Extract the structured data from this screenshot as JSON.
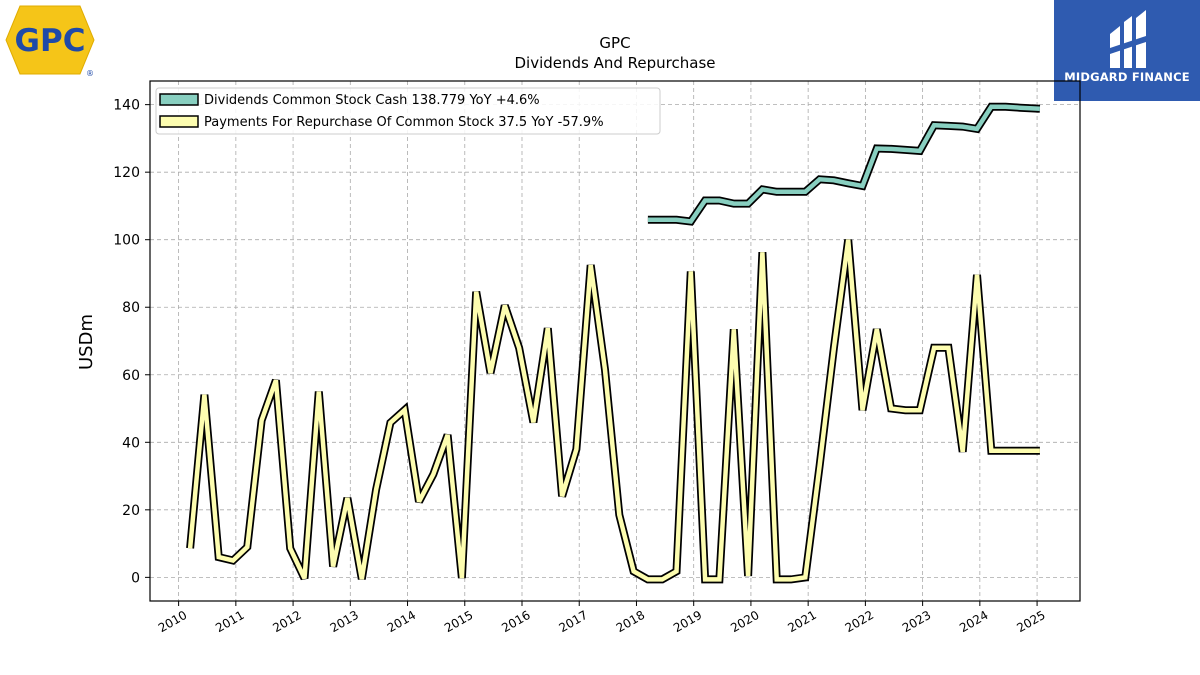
{
  "logos": {
    "left": {
      "text": "GPC",
      "reg": "®",
      "bg_color": "#f5c518",
      "text_color": "#1f4aa8"
    },
    "right": {
      "text": "MIDGARD FINANCE",
      "bg_color": "#2f5bb0"
    }
  },
  "chart_data": {
    "type": "line",
    "title": "GPC",
    "subtitle": "Dividends And Repurchase",
    "xlabel": "",
    "ylabel": "USDm",
    "xlim": [
      2009.5,
      2025.75
    ],
    "ylim": [
      -7,
      147
    ],
    "xticks": [
      2010,
      2011,
      2012,
      2013,
      2014,
      2015,
      2016,
      2017,
      2018,
      2019,
      2020,
      2021,
      2022,
      2023,
      2024,
      2025
    ],
    "yticks": [
      0,
      20,
      40,
      60,
      80,
      100,
      120,
      140
    ],
    "grid": true,
    "legend_position": "top-left",
    "series": [
      {
        "name": "Dividends Common Stock Cash",
        "legend_label": "Dividends Common Stock Cash  138.779 YoY +4.6%",
        "color": "#88cfc0",
        "points": [
          [
            2018.2,
            105.9
          ],
          [
            2018.45,
            105.9
          ],
          [
            2018.7,
            105.9
          ],
          [
            2018.95,
            105.4
          ],
          [
            2019.2,
            111.6
          ],
          [
            2019.45,
            111.6
          ],
          [
            2019.7,
            110.7
          ],
          [
            2019.95,
            110.7
          ],
          [
            2020.2,
            114.9
          ],
          [
            2020.45,
            114.2
          ],
          [
            2020.7,
            114.2
          ],
          [
            2020.95,
            114.2
          ],
          [
            2021.2,
            117.9
          ],
          [
            2021.45,
            117.6
          ],
          [
            2021.7,
            116.7
          ],
          [
            2021.95,
            115.9
          ],
          [
            2022.2,
            127.0
          ],
          [
            2022.45,
            126.9
          ],
          [
            2022.7,
            126.6
          ],
          [
            2022.95,
            126.3
          ],
          [
            2023.2,
            133.9
          ],
          [
            2023.45,
            133.7
          ],
          [
            2023.7,
            133.5
          ],
          [
            2023.95,
            132.8
          ],
          [
            2024.2,
            139.4
          ],
          [
            2024.45,
            139.4
          ],
          [
            2024.7,
            139.1
          ],
          [
            2025.05,
            138.8
          ]
        ]
      },
      {
        "name": "Payments For Repurchase Of Common Stock",
        "legend_label": "Payments For Repurchase Of Common Stock  37.5 YoY -57.9%",
        "color": "#fdfdb0",
        "points": [
          [
            2010.2,
            8.6
          ],
          [
            2010.45,
            54.1
          ],
          [
            2010.7,
            6.0
          ],
          [
            2010.95,
            5.0
          ],
          [
            2011.2,
            9.0
          ],
          [
            2011.45,
            46.5
          ],
          [
            2011.7,
            58.4
          ],
          [
            2011.95,
            8.6
          ],
          [
            2012.2,
            -0.3
          ],
          [
            2012.45,
            55.0
          ],
          [
            2012.7,
            3.2
          ],
          [
            2012.95,
            23.5
          ],
          [
            2013.2,
            -0.5
          ],
          [
            2013.45,
            26.0
          ],
          [
            2013.7,
            45.8
          ],
          [
            2013.95,
            49.6
          ],
          [
            2014.2,
            22.4
          ],
          [
            2014.45,
            30.5
          ],
          [
            2014.7,
            42.2
          ],
          [
            2014.95,
            -0.2
          ],
          [
            2015.2,
            84.6
          ],
          [
            2015.45,
            60.5
          ],
          [
            2015.7,
            80.5
          ],
          [
            2015.95,
            68.0
          ],
          [
            2016.2,
            45.9
          ],
          [
            2016.45,
            73.8
          ],
          [
            2016.7,
            24.0
          ],
          [
            2016.95,
            38.0
          ],
          [
            2017.2,
            92.5
          ],
          [
            2017.45,
            61.5
          ],
          [
            2017.7,
            18.5
          ],
          [
            2017.95,
            1.8
          ],
          [
            2018.2,
            -0.6
          ],
          [
            2018.45,
            -0.6
          ],
          [
            2018.7,
            1.8
          ],
          [
            2018.95,
            90.6
          ],
          [
            2019.2,
            -0.6
          ],
          [
            2019.45,
            -0.6
          ],
          [
            2019.7,
            73.5
          ],
          [
            2019.95,
            0.4
          ],
          [
            2020.2,
            96.3
          ],
          [
            2020.45,
            -0.6
          ],
          [
            2020.7,
            -0.6
          ],
          [
            2020.95,
            0.0
          ],
          [
            2021.2,
            33.0
          ],
          [
            2021.45,
            68.0
          ],
          [
            2021.7,
            100.0
          ],
          [
            2021.95,
            49.5
          ],
          [
            2022.2,
            73.5
          ],
          [
            2022.45,
            50.0
          ],
          [
            2022.7,
            49.5
          ],
          [
            2022.95,
            49.5
          ],
          [
            2023.2,
            68.0
          ],
          [
            2023.45,
            68.0
          ],
          [
            2023.7,
            37.2
          ],
          [
            2023.95,
            89.6
          ],
          [
            2024.2,
            37.5
          ],
          [
            2024.45,
            37.5
          ],
          [
            2024.7,
            37.5
          ],
          [
            2025.05,
            37.5
          ]
        ]
      }
    ]
  }
}
